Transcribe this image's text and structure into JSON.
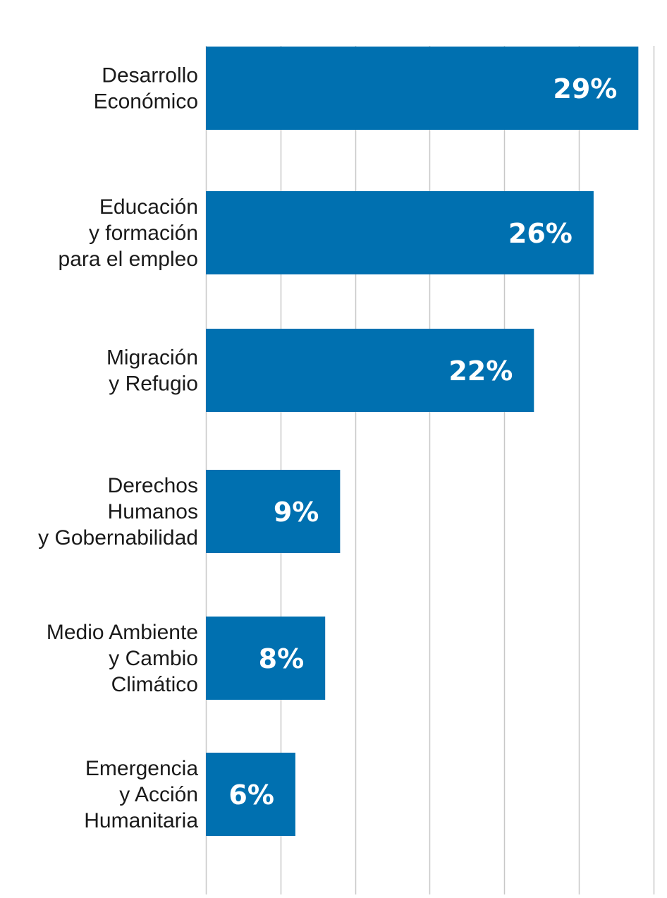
{
  "chart_data": {
    "type": "bar",
    "orientation": "horizontal",
    "title": "",
    "xlabel": "",
    "ylabel": "",
    "xlim": [
      0,
      30
    ],
    "grid": true,
    "bar_color": "#0070b0",
    "categories": [
      [
        "Desarrollo",
        "Económico"
      ],
      [
        "Educación",
        "y formación",
        "para el empleo"
      ],
      [
        "Migración",
        "y Refugio"
      ],
      [
        "Derechos",
        "Humanos",
        "y Gobernabilidad"
      ],
      [
        "Medio Ambiente",
        "y Cambio",
        "Climático"
      ],
      [
        "Emergencia",
        "y Acción",
        "Humanitaria"
      ]
    ],
    "values": [
      29,
      26,
      22,
      9,
      8,
      6
    ],
    "value_labels": [
      "29%",
      "26%",
      "22%",
      "9%",
      "8%",
      "6%"
    ]
  }
}
